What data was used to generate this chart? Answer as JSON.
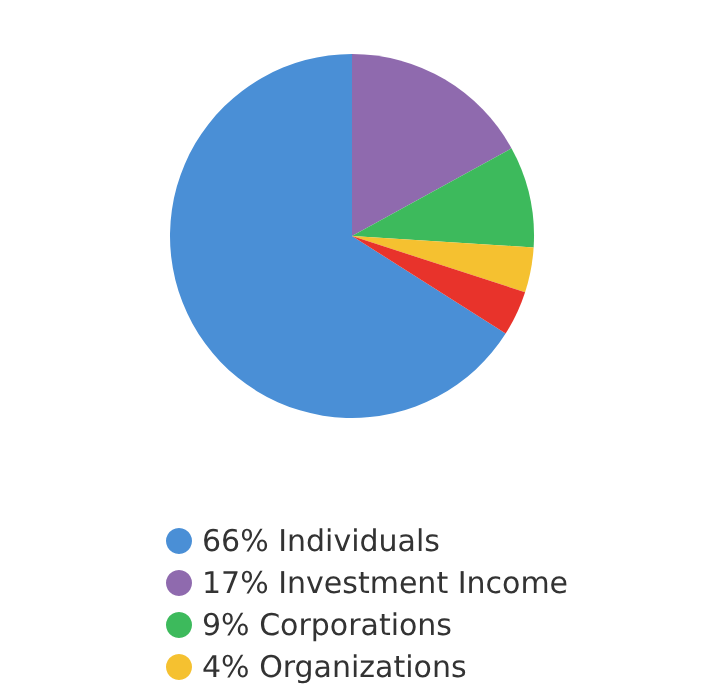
{
  "chart_data": {
    "type": "pie",
    "categories": [
      "66% Individuals",
      "17% Investment Income",
      "9% Corporations",
      "4% Organizations",
      null
    ],
    "values": [
      66,
      17,
      9,
      4,
      4
    ],
    "colors": [
      "#4a8fd6",
      "#8f6aae",
      "#3dba5c",
      "#f5c130",
      "#e8332b"
    ],
    "legend": "bottom left"
  }
}
